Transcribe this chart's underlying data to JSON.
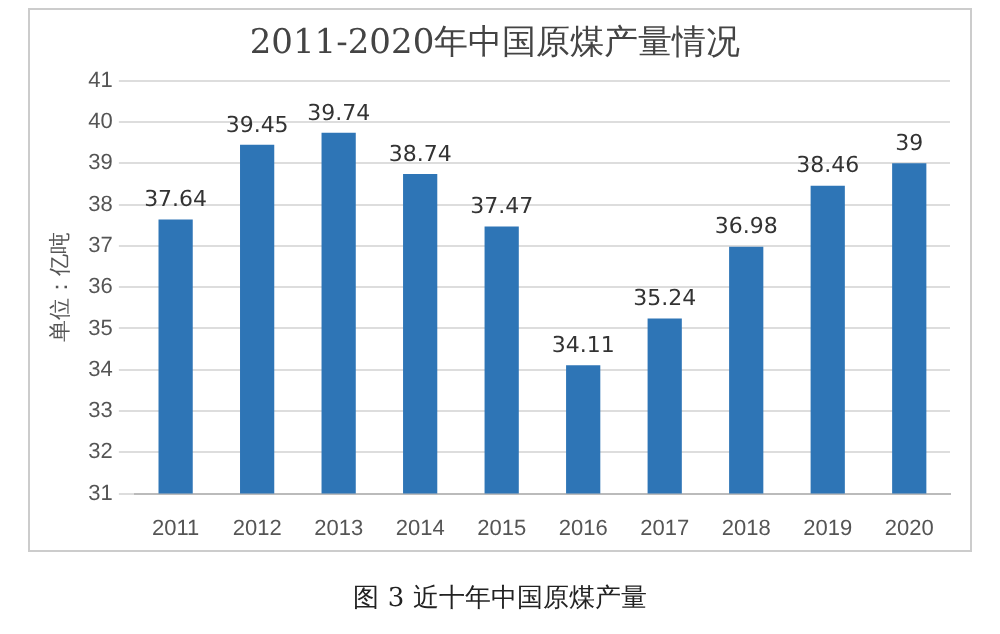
{
  "chart_data": {
    "type": "bar",
    "title": "2011-2020年中国原煤产量情况",
    "ylabel": "单位：亿吨",
    "categories": [
      "2011",
      "2012",
      "2013",
      "2014",
      "2015",
      "2016",
      "2017",
      "2018",
      "2019",
      "2020"
    ],
    "values": [
      37.64,
      39.45,
      39.74,
      38.74,
      37.47,
      34.11,
      35.24,
      36.98,
      38.46,
      39
    ],
    "color": "#2e75b6",
    "ylim": [
      31,
      41
    ],
    "yticks": [
      31,
      32,
      33,
      34,
      35,
      36,
      37,
      38,
      39,
      40,
      41
    ],
    "grid": "y",
    "data_labels": true,
    "annotations": [
      "图 3 近十年中国原煤产量"
    ]
  }
}
